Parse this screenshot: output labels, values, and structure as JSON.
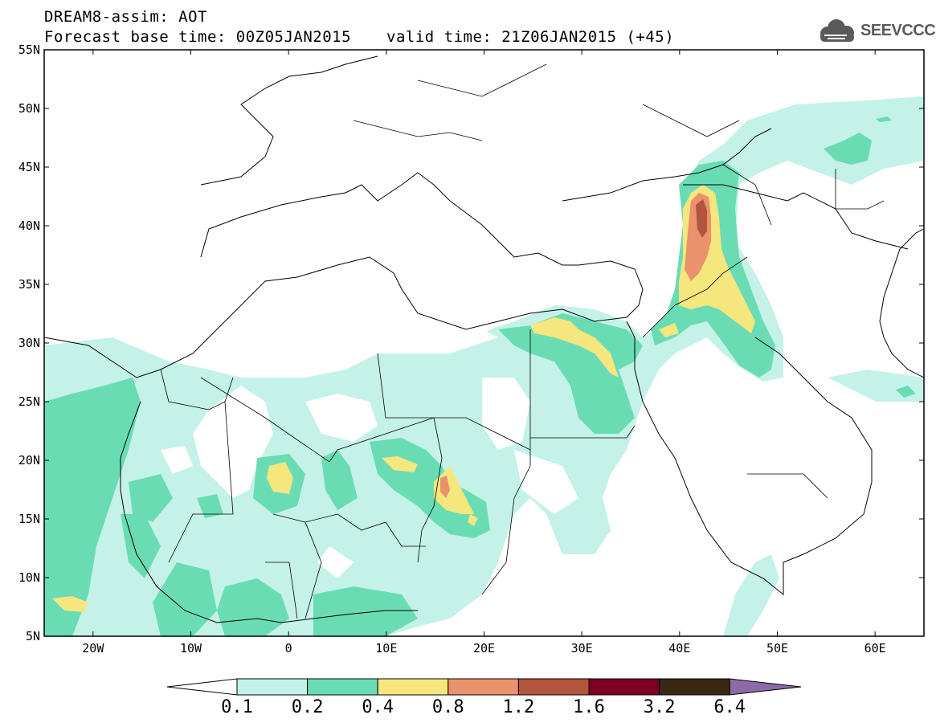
{
  "header": {
    "line1": "DREAM8-assim: AOT",
    "base_time": "Forecast base time: 00Z05JAN2015",
    "valid_time": "valid time: 21Z06JAN2015 (+45)",
    "logo_text": "SEEVCCC",
    "logo_icon": "cloud-icon"
  },
  "map": {
    "lat_labels": [
      "55N",
      "50N",
      "45N",
      "40N",
      "35N",
      "30N",
      "25N",
      "20N",
      "15N",
      "10N",
      "5N"
    ],
    "lon_labels": [
      "20W",
      "10W",
      "0",
      "10E",
      "20E",
      "30E",
      "40E",
      "50E",
      "60E"
    ],
    "lat_range": [
      5,
      55
    ],
    "lon_range": [
      -25,
      65
    ]
  },
  "colorbar": {
    "levels": [
      "0.1",
      "0.2",
      "0.4",
      "0.8",
      "1.2",
      "1.6",
      "3.2",
      "6.4"
    ],
    "colors": [
      "#ffffff",
      "#c4f2e8",
      "#6adcb4",
      "#f6e67e",
      "#e9926b",
      "#b3543d",
      "#7d0025",
      "#3b2715",
      "#8b6aa6"
    ]
  }
}
